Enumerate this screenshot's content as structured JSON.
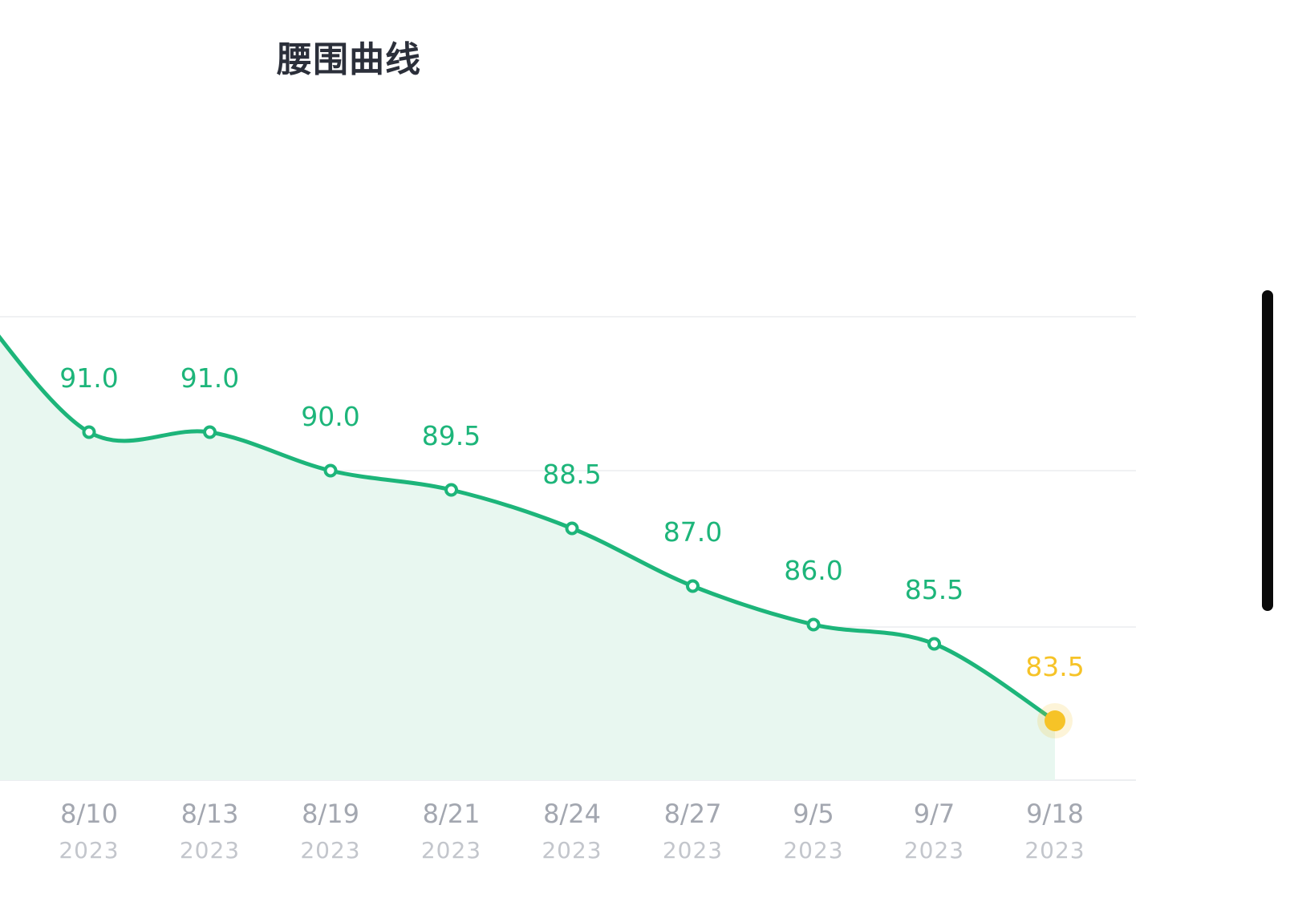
{
  "chart_data": {
    "type": "line",
    "title": "腰围曲线",
    "categories": [
      "8/10",
      "8/13",
      "8/19",
      "8/21",
      "8/24",
      "8/27",
      "9/5",
      "9/7",
      "9/18"
    ],
    "years": [
      "2023",
      "2023",
      "2023",
      "2023",
      "2023",
      "2023",
      "2023",
      "2023",
      "2023"
    ],
    "values": [
      91.0,
      91.0,
      90.0,
      89.5,
      88.5,
      87.0,
      86.0,
      85.5,
      83.5
    ],
    "value_labels": [
      "91.0",
      "91.0",
      "90.0",
      "89.5",
      "88.5",
      "87.0",
      "86.0",
      "85.5",
      "83.5"
    ],
    "highlight_index": 8,
    "previous_offscreen_value": 94.5,
    "grid": true,
    "area_fill": true,
    "smooth": true,
    "colors": {
      "line": "#1db57a",
      "area": "#e8f7f0",
      "highlight": "#f6c327",
      "grid": "#f0f1f3"
    }
  }
}
